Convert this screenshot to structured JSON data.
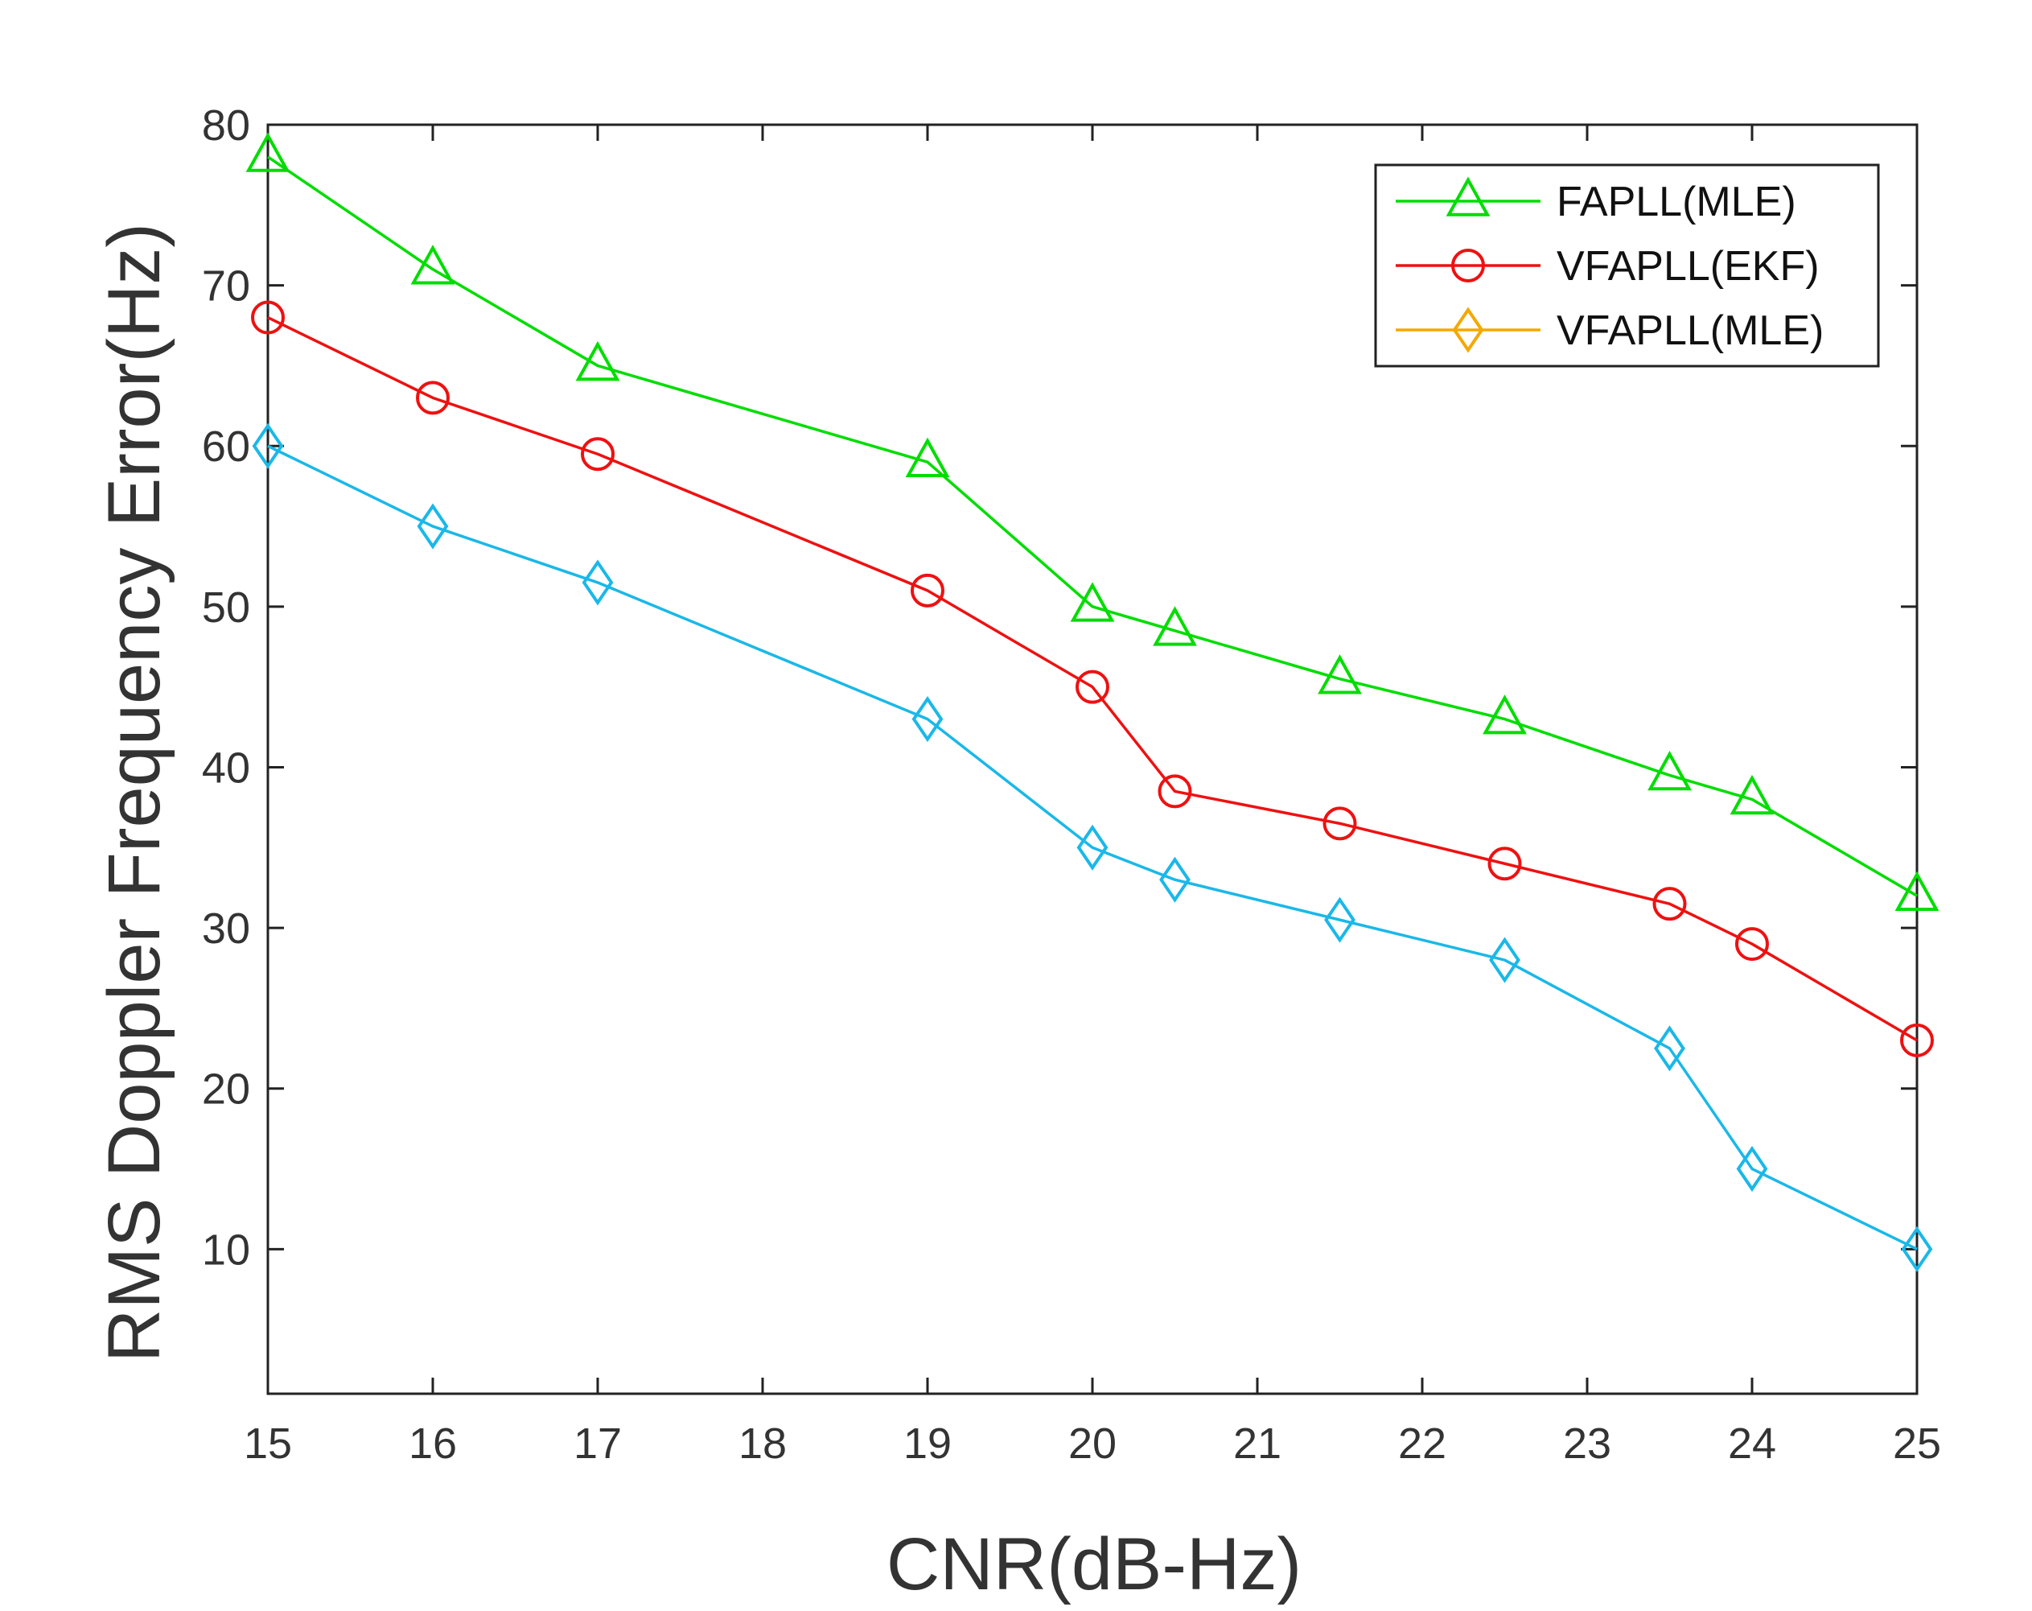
{
  "chart_data": {
    "type": "line",
    "title": "",
    "xlabel": "CNR(dB-Hz)",
    "ylabel": "RMS Doppler Frequency Error(Hz)",
    "xlim": [
      15,
      25
    ],
    "ylim": [
      1,
      80
    ],
    "xticks": [
      15,
      16,
      17,
      18,
      19,
      20,
      21,
      22,
      23,
      24,
      25
    ],
    "yticks": [
      10,
      20,
      30,
      40,
      50,
      60,
      70,
      80
    ],
    "grid": false,
    "legend_position": "top-right",
    "x": [
      15,
      16,
      17,
      19,
      20,
      20.5,
      21.5,
      22.5,
      23.5,
      24,
      25
    ],
    "series": [
      {
        "name": "FAPLL(MLE)",
        "color": "#00dd00",
        "marker": "triangle",
        "values": [
          78,
          71,
          65,
          59,
          50,
          48.5,
          45.5,
          43,
          39.5,
          38,
          32
        ]
      },
      {
        "name": "VFAPLL(EKF)",
        "color": "#ee1111",
        "marker": "circle",
        "values": [
          68,
          63,
          59.5,
          51,
          45,
          38.5,
          36.5,
          34,
          31.5,
          29,
          23
        ]
      },
      {
        "name": " VFAPLL(MLE)",
        "color": "#1ab8e8",
        "legend_color": "#f5a800",
        "marker": "diamond",
        "values": [
          60,
          55,
          51.5,
          43,
          35,
          33,
          30.5,
          28,
          22.5,
          15,
          10
        ]
      }
    ]
  }
}
